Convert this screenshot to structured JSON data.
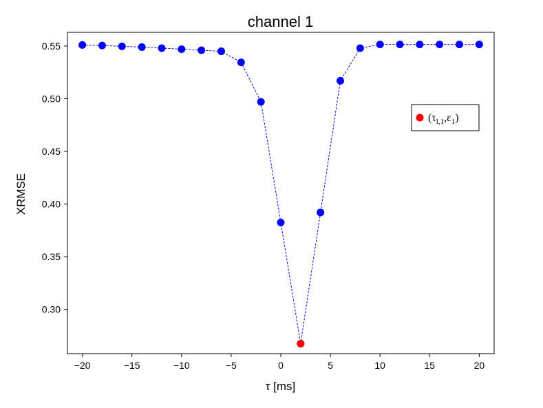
{
  "chart_data": {
    "type": "scatter",
    "title": "channel 1",
    "xlabel": "τ [ms]",
    "ylabel": "XRMSE",
    "xlim": [
      -21.5,
      21.5
    ],
    "ylim": [
      0.258,
      0.563
    ],
    "xticks": [
      "−20",
      "−15",
      "−10",
      "−5",
      "0",
      "5",
      "10",
      "15",
      "20"
    ],
    "xtick_values": [
      -20,
      -15,
      -10,
      -5,
      0,
      5,
      10,
      15,
      20
    ],
    "yticks": [
      "0.30",
      "0.35",
      "0.40",
      "0.45",
      "0.50",
      "0.55"
    ],
    "ytick_values": [
      0.3,
      0.35,
      0.4,
      0.45,
      0.5,
      0.55
    ],
    "grid": false,
    "series": [
      {
        "style": "markers with dashed line",
        "color": "#0000ff",
        "x": [
          -20,
          -18,
          -16,
          -14,
          -12,
          -10,
          -8,
          -6,
          -4,
          -2,
          0,
          2,
          4,
          6,
          8,
          10,
          12,
          14,
          16,
          18,
          20
        ],
        "y": [
          0.551,
          0.5505,
          0.5497,
          0.549,
          0.548,
          0.547,
          0.546,
          0.545,
          0.5345,
          0.497,
          0.3825,
          0.2675,
          0.392,
          0.517,
          0.548,
          0.5515,
          0.5515,
          0.5515,
          0.5515,
          0.5515,
          0.5515
        ]
      }
    ],
    "highlight": {
      "color": "#ff0000",
      "x": 2,
      "y": 0.2675
    },
    "legend": {
      "placement": "upper right",
      "entries": [
        {
          "color": "#ff0000",
          "tau": "τ",
          "tau_sub": "l,1",
          "eps": "ε",
          "eps_sub": "1"
        }
      ]
    }
  }
}
